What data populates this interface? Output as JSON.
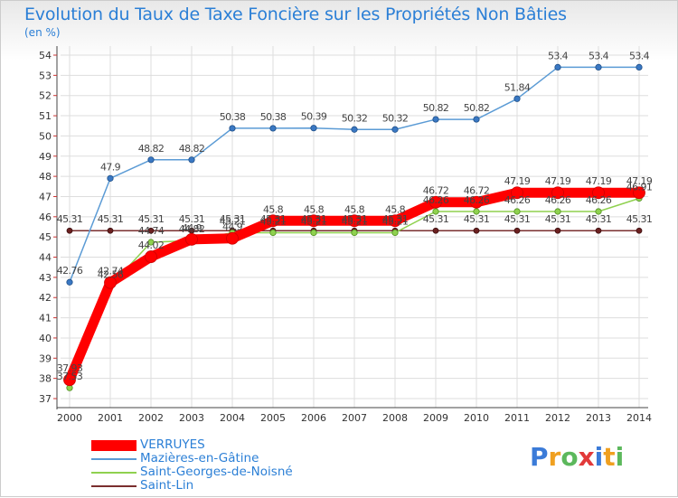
{
  "title": "Evolution du Taux de Taxe Foncière sur les Propriétés Non Bâties",
  "subtitle": "(en %)",
  "logo_text": "Proxiti",
  "chart_data": {
    "type": "line",
    "x": [
      "2000",
      "2001",
      "2002",
      "2003",
      "2004",
      "2005",
      "2006",
      "2007",
      "2008",
      "2009",
      "2010",
      "2011",
      "2012",
      "2013",
      "2014"
    ],
    "ylim": [
      37,
      54
    ],
    "yticks": [
      37,
      38,
      39,
      40,
      41,
      42,
      43,
      44,
      45,
      46,
      47,
      48,
      49,
      50,
      51,
      52,
      53,
      54
    ],
    "grid": "both",
    "legend_position": "bottom-left",
    "series": [
      {
        "name": "VERRUYES",
        "color": "#ff0000",
        "values": [
          37.93,
          42.74,
          44.02,
          44.88,
          44.93,
          45.8,
          45.8,
          45.8,
          45.8,
          46.72,
          46.72,
          47.19,
          47.19,
          47.19,
          47.19
        ],
        "labels": [
          "37.93",
          "42.74",
          "44.02",
          "44.9",
          "44.9",
          "45.8",
          "45.8",
          "45.8",
          "45.8",
          "46.72",
          "46.72",
          "47.19",
          "47.19",
          "47.19",
          "47.19"
        ]
      },
      {
        "name": "Mazières-en-Gâtine",
        "color": "#5b9bd5",
        "values": [
          42.76,
          47.9,
          48.82,
          48.82,
          50.38,
          50.38,
          50.39,
          50.32,
          50.32,
          50.82,
          50.82,
          51.84,
          53.4,
          53.4,
          53.4
        ],
        "labels": [
          "42.76",
          "47.9",
          "48.82",
          "48.82",
          "50.38",
          "50.38",
          "50.39",
          "50.32",
          "50.32",
          "50.82",
          "50.82",
          "51.84",
          "53.4",
          "53.4",
          "53.4"
        ]
      },
      {
        "name": "Saint-Georges-de-Noisné",
        "color": "#8fd14f",
        "values": [
          37.53,
          42.56,
          44.74,
          44.82,
          45.21,
          45.21,
          45.21,
          45.21,
          45.21,
          46.26,
          46.26,
          46.26,
          46.26,
          46.26,
          46.91
        ],
        "labels": [
          "37.53",
          "42.56",
          "44.74",
          "44.82",
          "45.21",
          "45.21",
          "45.21",
          "45.21",
          "45.21",
          "46.26",
          "46.26",
          "46.26",
          "46.26",
          "46.26",
          "46.91"
        ]
      },
      {
        "name": "Saint-Lin",
        "color": "#7a2e2e",
        "values": [
          45.31,
          45.31,
          45.31,
          45.31,
          45.31,
          45.31,
          45.31,
          45.31,
          45.31,
          45.31,
          45.31,
          45.31,
          45.31,
          45.31,
          45.31
        ],
        "labels": [
          "45.31",
          "45.31",
          "45.31",
          "45.31",
          "45.31",
          "45.31",
          "45.31",
          "45.31",
          "45.31",
          "45.31",
          "45.31",
          "45.31",
          "45.31",
          "45.31",
          "45.31"
        ]
      }
    ]
  }
}
